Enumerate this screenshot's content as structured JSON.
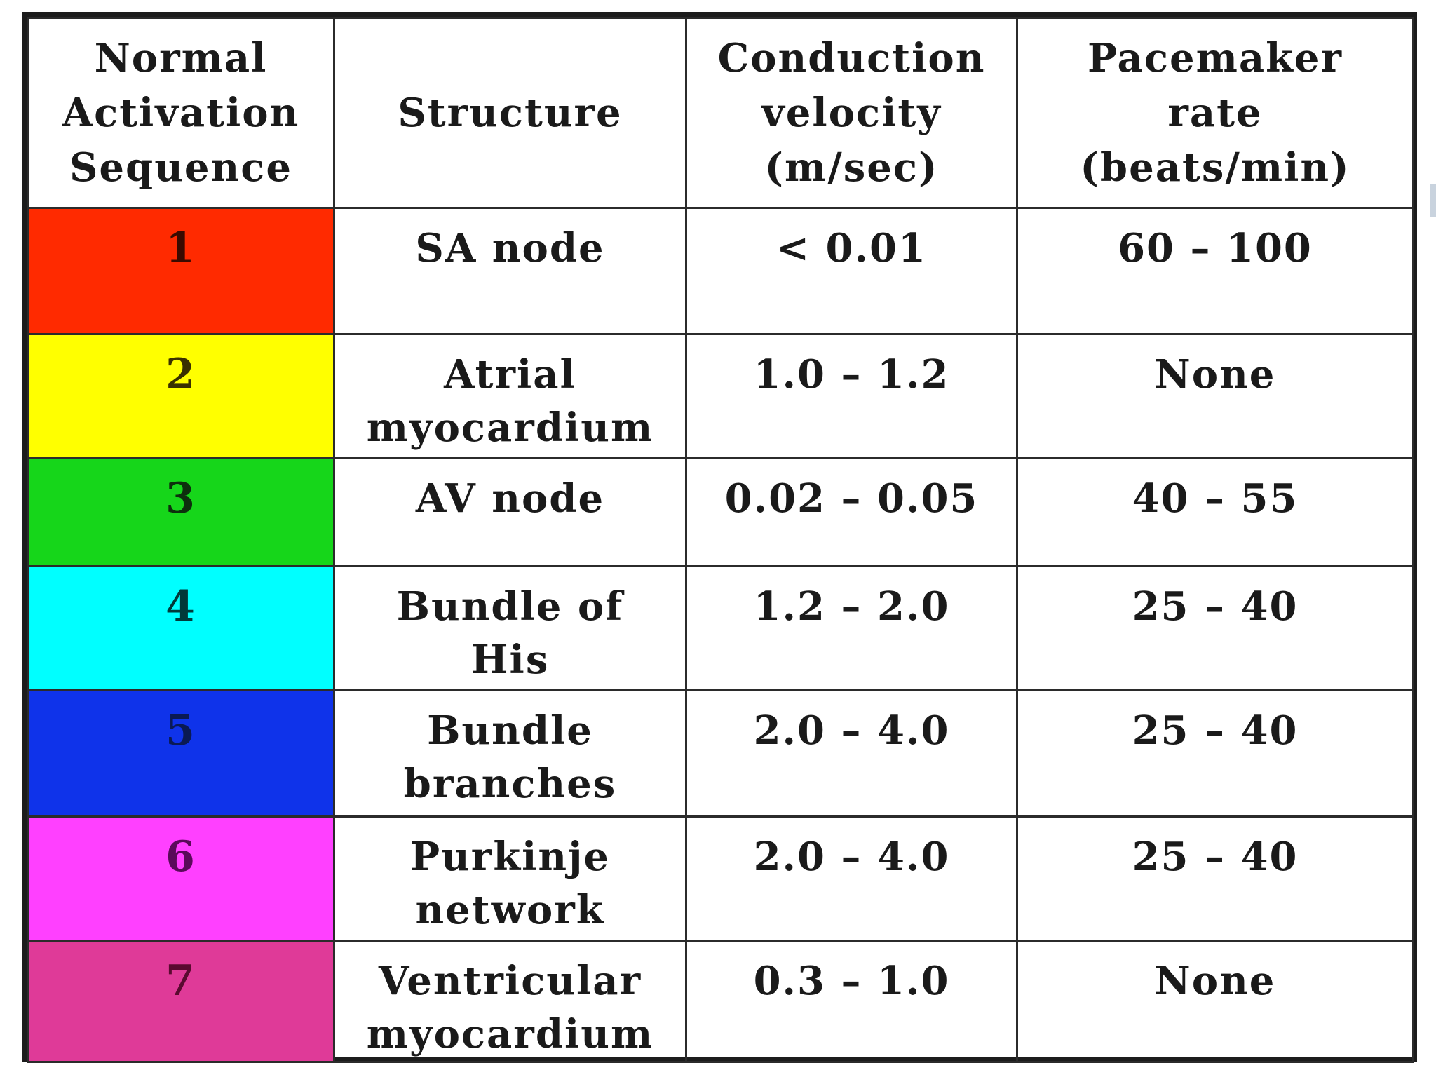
{
  "table": {
    "headers": [
      "Normal\nActivation\nSequence",
      "Structure",
      "Conduction\nvelocity\n(m/sec)",
      "Pacemaker\nrate\n(beats/min)"
    ],
    "rows": [
      {
        "seq": "1",
        "structure": "SA node",
        "velocity": "< 0.01",
        "rate": "60 – 100",
        "color": "#ff2a00",
        "text_color": "#3a0a00"
      },
      {
        "seq": "2",
        "structure": "Atrial\nmyocardium",
        "velocity": "1.0 – 1.2",
        "rate": "None",
        "color": "#ffff00",
        "text_color": "#3a3000"
      },
      {
        "seq": "3",
        "structure": "AV node",
        "velocity": "0.02 – 0.05",
        "rate": "40 – 55",
        "color": "#16d61a",
        "text_color": "#0d2f0d"
      },
      {
        "seq": "4",
        "structure": "Bundle of\nHis",
        "velocity": "1.2 – 2.0",
        "rate": "25 – 40",
        "color": "#00ffff",
        "text_color": "#003a3a"
      },
      {
        "seq": "5",
        "structure": "Bundle\nbranches",
        "velocity": "2.0 – 4.0",
        "rate": "25 – 40",
        "color": "#0f33ea",
        "text_color": "#0a1a55"
      },
      {
        "seq": "6",
        "structure": "Purkinje\nnetwork",
        "velocity": "2.0 – 4.0",
        "rate": "25 – 40",
        "color": "#ff40ff",
        "text_color": "#5a0a5a"
      },
      {
        "seq": "7",
        "structure": "Ventricular\nmyocardium",
        "velocity": "0.3 – 1.0",
        "rate": "None",
        "color": "#df3a98",
        "text_color": "#5a0a30"
      }
    ]
  }
}
